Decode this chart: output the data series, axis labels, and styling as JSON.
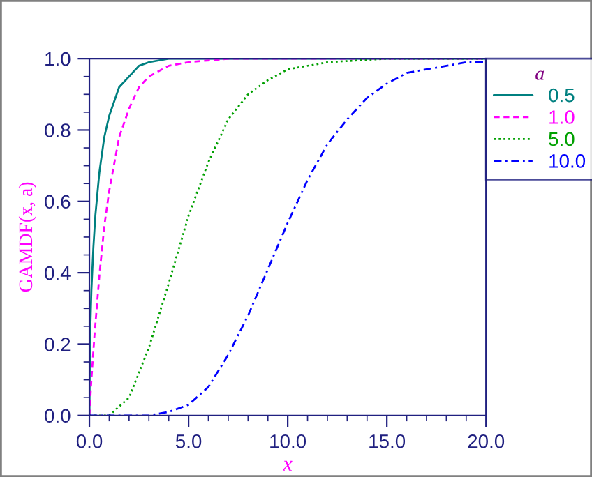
{
  "chart_data": {
    "type": "line",
    "xlabel": "x",
    "ylabel": "GAMDF(x, a)",
    "legend_title": "a",
    "xlim": [
      0,
      20
    ],
    "ylim": [
      0,
      1
    ],
    "xticks": [
      {
        "value": 0,
        "label": "0.0"
      },
      {
        "value": 5,
        "label": "5.0"
      },
      {
        "value": 10,
        "label": "10.0"
      },
      {
        "value": 15,
        "label": "15.0"
      },
      {
        "value": 20,
        "label": "20.0"
      }
    ],
    "yticks": [
      {
        "value": 0,
        "label": "0.0"
      },
      {
        "value": 0.2,
        "label": "0.2"
      },
      {
        "value": 0.4,
        "label": "0.4"
      },
      {
        "value": 0.6,
        "label": "0.6"
      },
      {
        "value": 0.8,
        "label": "0.8"
      },
      {
        "value": 1,
        "label": "1.0"
      }
    ],
    "grid": false,
    "legend": "top right",
    "marker": "none",
    "series": [
      {
        "name": "0.5",
        "color": "#008080",
        "line_style": "solid",
        "x": [
          0,
          0.02,
          0.05,
          0.1,
          0.2,
          0.3,
          0.5,
          0.75,
          1,
          1.5,
          2,
          2.5,
          3,
          4,
          5,
          6,
          8,
          20
        ],
        "values": [
          0,
          0.16,
          0.25,
          0.35,
          0.47,
          0.56,
          0.68,
          0.78,
          0.84,
          0.92,
          0.95,
          0.98,
          0.99,
          1.0,
          1.0,
          1.0,
          1.0,
          1.0
        ]
      },
      {
        "name": "1.0",
        "color": "#ff00ff",
        "line_style": "dashed",
        "x": [
          0,
          0.1,
          0.25,
          0.5,
          0.75,
          1,
          1.5,
          2,
          2.5,
          3,
          4,
          5,
          7,
          20
        ],
        "values": [
          0,
          0.1,
          0.22,
          0.39,
          0.53,
          0.63,
          0.78,
          0.86,
          0.92,
          0.95,
          0.98,
          0.99,
          1.0,
          1.0
        ]
      },
      {
        "name": "5.0",
        "color": "#00a000",
        "line_style": "dotted",
        "x": [
          0,
          1,
          2,
          3,
          4,
          5,
          6,
          7,
          8,
          9,
          10,
          12,
          15,
          20
        ],
        "values": [
          0,
          0.0,
          0.05,
          0.19,
          0.37,
          0.56,
          0.71,
          0.83,
          0.9,
          0.94,
          0.97,
          0.99,
          1.0,
          1.0
        ]
      },
      {
        "name": "10.0",
        "color": "#0000ff",
        "line_style": "dashdot",
        "x": [
          0,
          2,
          3,
          4,
          5,
          6,
          7,
          8,
          9,
          10,
          11,
          12,
          13,
          14,
          15,
          16,
          17,
          18,
          19,
          20
        ],
        "values": [
          0,
          0.0,
          0.0,
          0.01,
          0.03,
          0.08,
          0.17,
          0.28,
          0.41,
          0.54,
          0.66,
          0.76,
          0.83,
          0.89,
          0.93,
          0.96,
          0.97,
          0.98,
          0.99,
          0.99
        ]
      }
    ]
  }
}
